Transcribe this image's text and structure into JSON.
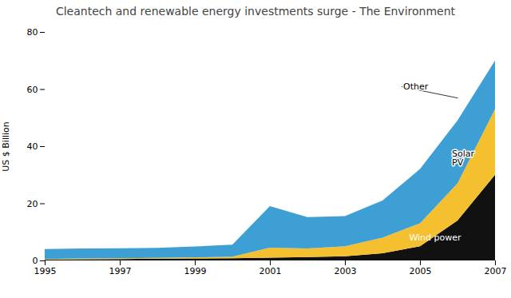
{
  "chart_data": {
    "type": "area",
    "stacked": true,
    "title": "Cleantech and renewable energy investments surge - The Environment",
    "ylabel": "US $ Billion",
    "x": [
      1995,
      1996,
      1997,
      1998,
      1999,
      2000,
      2001,
      2002,
      2003,
      2004,
      2005,
      2006,
      2007
    ],
    "series": [
      {
        "name": "Wind power",
        "color": "#111111",
        "values": [
          0.3,
          0.4,
          0.5,
          0.6,
          0.7,
          0.8,
          1.0,
          1.2,
          1.5,
          2.5,
          5.0,
          14.0,
          30.0
        ]
      },
      {
        "name": "Solar\nPV",
        "color": "#f5c030",
        "values": [
          0.2,
          0.3,
          0.3,
          0.3,
          0.4,
          0.5,
          3.5,
          3.0,
          3.5,
          5.5,
          8.0,
          13.0,
          23.0
        ]
      },
      {
        "name": "Other",
        "color": "#3d9fd3",
        "values": [
          3.5,
          3.5,
          3.5,
          3.5,
          3.8,
          4.2,
          14.5,
          11.0,
          10.5,
          13.0,
          19.0,
          22.0,
          17.0
        ]
      }
    ],
    "xlim": [
      1995,
      2007
    ],
    "xticks": [
      1995,
      1997,
      1999,
      2001,
      2003,
      2005,
      2007
    ],
    "ylim": [
      0,
      80
    ],
    "yticks": [
      0,
      20,
      40,
      60,
      80
    ],
    "grid": false,
    "annotations": [
      {
        "text": "Other",
        "x": 2004.5,
        "y": 61.0,
        "arrow_x": 2006.0,
        "arrow_y": 57.0
      },
      {
        "text": "Solar\nPV",
        "x": 2005.8,
        "y": 36.0
      },
      {
        "text": "Wind power",
        "x": 2004.7,
        "y": 8.0,
        "color": "white"
      }
    ]
  }
}
